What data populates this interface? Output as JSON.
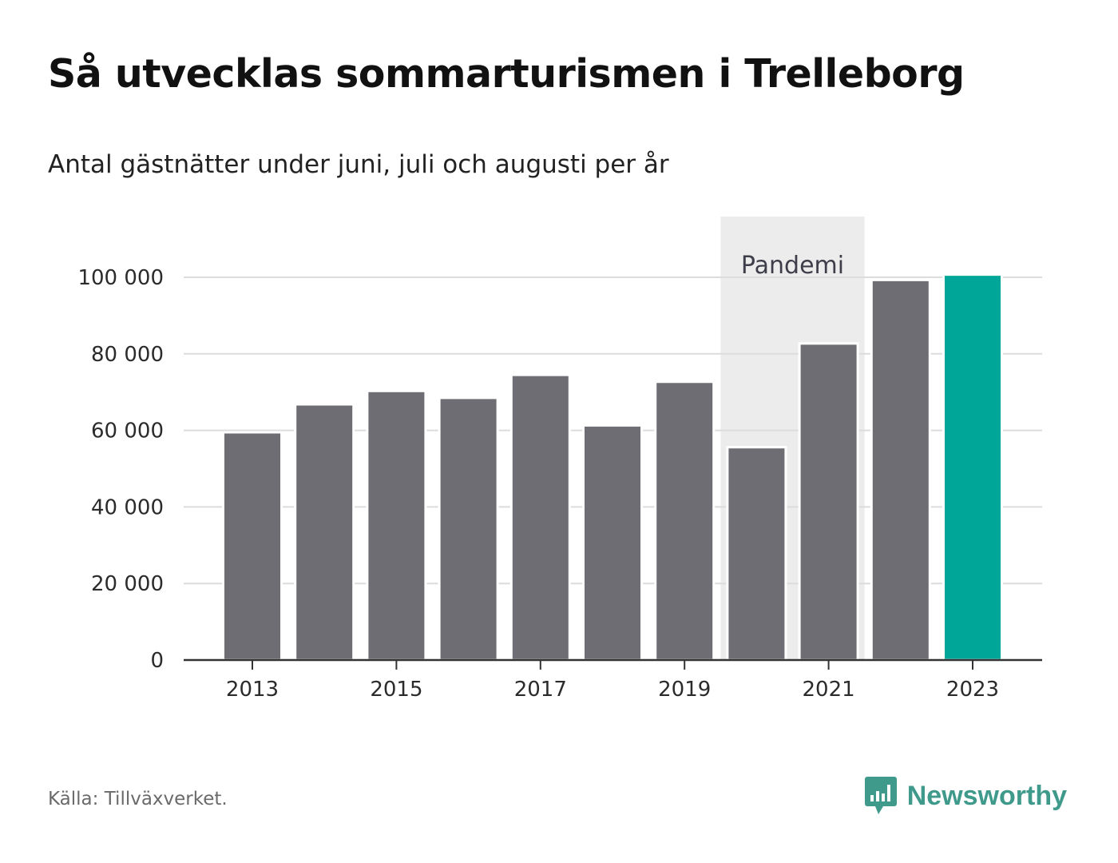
{
  "title": "Så utvecklas sommarturismen i Trelleborg",
  "subtitle": "Antal gästnätter under juni, juli och augusti per år",
  "source": "Källa: Tillväxverket.",
  "brand": {
    "name": "Newsworthy",
    "icon": "newsworthy-logo-icon",
    "color": "#3f9a8b"
  },
  "chart_data": {
    "type": "bar",
    "categories": [
      "2013",
      "2014",
      "2015",
      "2016",
      "2017",
      "2018",
      "2019",
      "2020",
      "2021",
      "2022",
      "2023"
    ],
    "values": [
      59500,
      66800,
      70300,
      68500,
      74500,
      61300,
      72700,
      55600,
      82700,
      99300,
      100700
    ],
    "title": "Så utvecklas sommarturismen i Trelleborg",
    "subtitle": "Antal gästnätter under juni, juli och augusti per år",
    "xlabel": "",
    "ylabel": "",
    "ylim": [
      0,
      110000
    ],
    "yticks": [
      0,
      20000,
      40000,
      60000,
      80000,
      100000
    ],
    "ytick_labels": [
      "0",
      "20 000",
      "40 000",
      "60 000",
      "80 000",
      "100 000"
    ],
    "xticks": [
      "2013",
      "2015",
      "2017",
      "2019",
      "2021",
      "2023"
    ],
    "grid": true,
    "bar_color": "#6e6d73",
    "highlight": {
      "category": "2023",
      "color": "#00a698"
    },
    "annotation_band": {
      "label": "Pandemi",
      "from": "2020",
      "to": "2021",
      "color": "#ececec"
    }
  }
}
